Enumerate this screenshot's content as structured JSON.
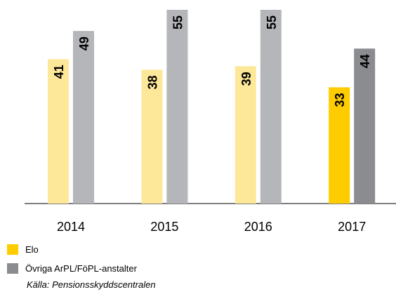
{
  "chart_data": {
    "type": "bar",
    "categories": [
      "2014",
      "2015",
      "2016",
      "2017"
    ],
    "series": [
      {
        "name": "Elo",
        "color": "#ffcc00",
        "colors": [
          "#fde89a",
          "#fde89a",
          "#fde89a",
          "#ffcc00"
        ],
        "values": [
          41,
          38,
          39,
          33
        ]
      },
      {
        "name": "Övriga ArPL/FöPL-anstalter",
        "color": "#8a8c8f",
        "colors": [
          "#b4b6b9",
          "#b4b6b9",
          "#b4b6b9",
          "#8a8c8f"
        ],
        "values": [
          49,
          55,
          55,
          44
        ]
      }
    ],
    "source": "Källa: Pensionsskyddscentralen"
  }
}
